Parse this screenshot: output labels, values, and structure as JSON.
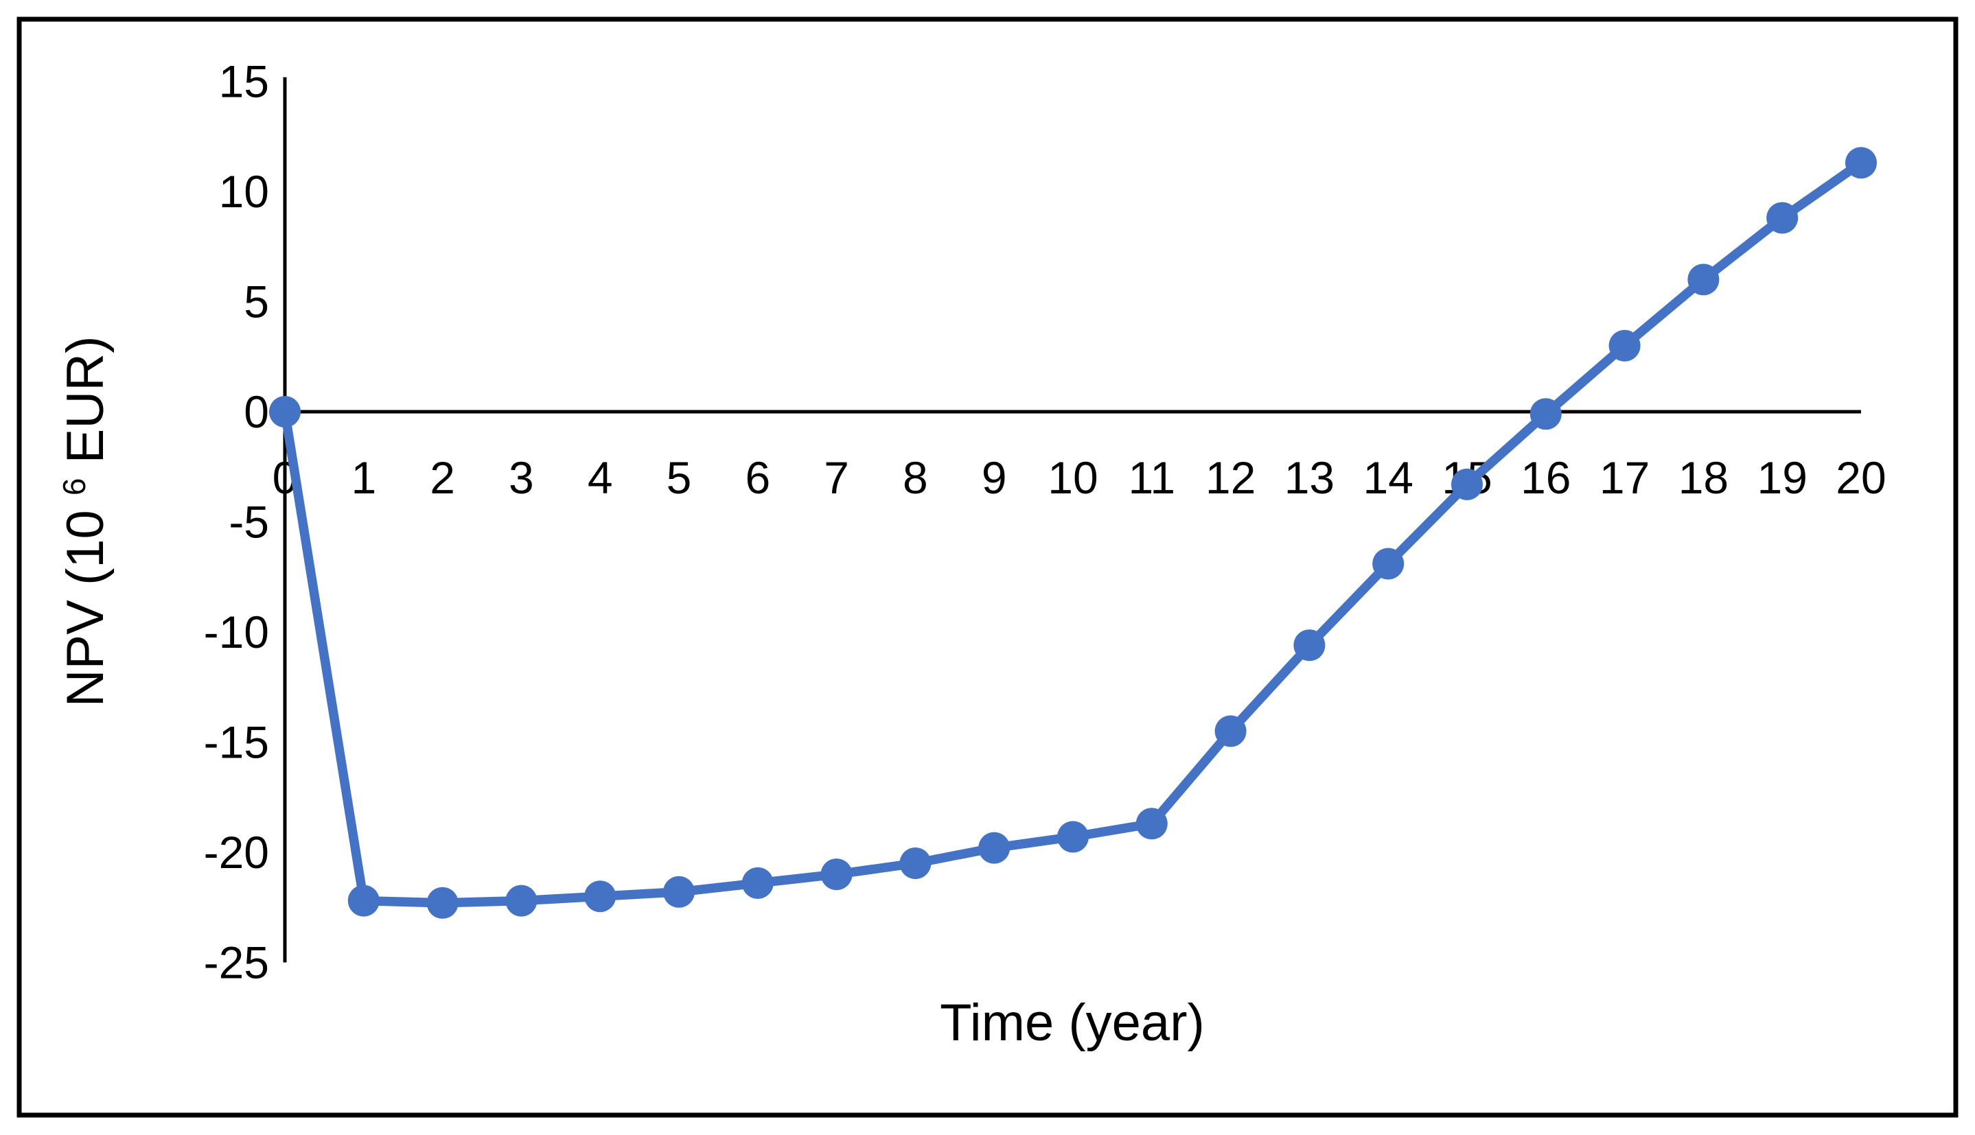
{
  "figure": {
    "background_color": "#ffffff",
    "border_color": "#000000",
    "text_color": "#000000"
  },
  "chart_data": {
    "type": "line",
    "title": "",
    "xlabel": "Time (year)",
    "ylabel": "NPV (10⁶ EUR)",
    "ylabel_parts": {
      "prefix": "NPV (10",
      "superscript": "6",
      "suffix": " EUR)"
    },
    "x": [
      0,
      1,
      2,
      3,
      4,
      5,
      6,
      7,
      8,
      9,
      10,
      11,
      12,
      13,
      14,
      15,
      16,
      17,
      18,
      19,
      20
    ],
    "values": [
      0,
      -22.2,
      -22.3,
      -22.2,
      -22.0,
      -21.8,
      -21.4,
      -21.0,
      -20.5,
      -19.8,
      -19.3,
      -18.7,
      -14.5,
      -10.6,
      -6.9,
      -3.3,
      -0.1,
      3.0,
      6.0,
      8.8,
      11.3
    ],
    "xticks": [
      0,
      1,
      2,
      3,
      4,
      5,
      6,
      7,
      8,
      9,
      10,
      11,
      12,
      13,
      14,
      15,
      16,
      17,
      18,
      19,
      20
    ],
    "yticks": [
      15,
      10,
      5,
      0,
      -5,
      -10,
      -15,
      -20,
      -25
    ],
    "xlim": [
      0,
      20
    ],
    "ylim": [
      -25,
      15
    ],
    "grid": false,
    "legend_position": "none",
    "marker": "circle",
    "series_color": "#4472C4",
    "axis_color": "#000000"
  }
}
